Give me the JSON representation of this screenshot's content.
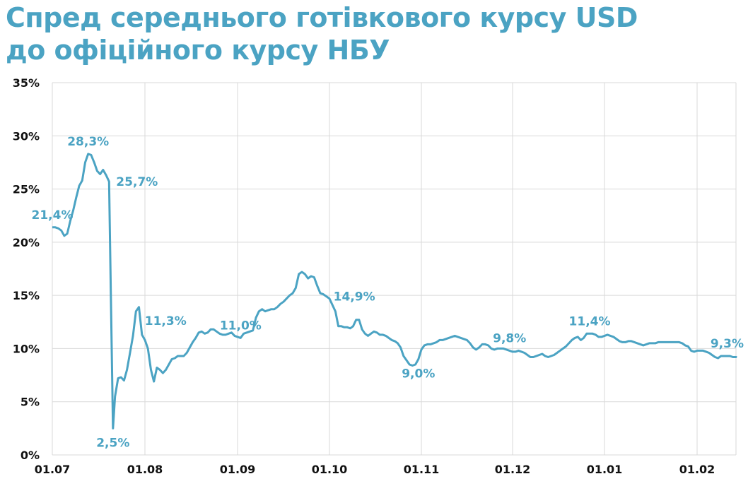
{
  "title": {
    "line1": "Спред середнього готівкового курсу USD",
    "line2": "до офіційного курсу НБУ"
  },
  "colors": {
    "accent": "#4ba3c3",
    "grid": "#d9d9d9",
    "axis_text": "#111111"
  },
  "chart_data": {
    "type": "line",
    "x_ticks": [
      "01.07",
      "01.08",
      "01.09",
      "01.10",
      "01.11",
      "01.12",
      "01.01",
      "01.02"
    ],
    "y_ticks": [
      "0%",
      "5%",
      "10%",
      "15%",
      "20%",
      "25%",
      "30%",
      "35%"
    ],
    "ylim": [
      0,
      35
    ],
    "xlim_days": [
      0,
      237
    ],
    "grid": "vertical and horizontal",
    "series": [
      {
        "points": [
          [
            0,
            21.4
          ],
          [
            1,
            21.4
          ],
          [
            2,
            21.3
          ],
          [
            3,
            21.1
          ],
          [
            4,
            20.6
          ],
          [
            5,
            20.8
          ],
          [
            6,
            22.0
          ],
          [
            7,
            23.0
          ],
          [
            8,
            24.2
          ],
          [
            9,
            25.3
          ],
          [
            10,
            25.8
          ],
          [
            11,
            27.5
          ],
          [
            12,
            28.3
          ],
          [
            13,
            28.2
          ],
          [
            14,
            27.5
          ],
          [
            15,
            26.7
          ],
          [
            16,
            26.4
          ],
          [
            17,
            26.8
          ],
          [
            18,
            26.3
          ],
          [
            19,
            25.7
          ],
          [
            19.6,
            15.0
          ],
          [
            20.3,
            2.5
          ],
          [
            21,
            5.5
          ],
          [
            22,
            7.2
          ],
          [
            23,
            7.3
          ],
          [
            24,
            7.0
          ],
          [
            25,
            8.0
          ],
          [
            26,
            9.6
          ],
          [
            27,
            11.2
          ],
          [
            28,
            13.5
          ],
          [
            29,
            13.9
          ],
          [
            30,
            11.3
          ],
          [
            31,
            10.8
          ],
          [
            32,
            10.0
          ],
          [
            33,
            8.0
          ],
          [
            34,
            6.9
          ],
          [
            35,
            8.2
          ],
          [
            36,
            8.0
          ],
          [
            37,
            7.7
          ],
          [
            38,
            8.0
          ],
          [
            39,
            8.5
          ],
          [
            40,
            9.0
          ],
          [
            41,
            9.1
          ],
          [
            42,
            9.3
          ],
          [
            43,
            9.3
          ],
          [
            44,
            9.3
          ],
          [
            45,
            9.6
          ],
          [
            46,
            10.1
          ],
          [
            47,
            10.6
          ],
          [
            48,
            11.0
          ],
          [
            49,
            11.5
          ],
          [
            50,
            11.6
          ],
          [
            51,
            11.4
          ],
          [
            52,
            11.5
          ],
          [
            53,
            11.8
          ],
          [
            54,
            11.8
          ],
          [
            55,
            11.6
          ],
          [
            56,
            11.4
          ],
          [
            57,
            11.3
          ],
          [
            58,
            11.3
          ],
          [
            59,
            11.4
          ],
          [
            60,
            11.5
          ],
          [
            61,
            11.2
          ],
          [
            62,
            11.1
          ],
          [
            63,
            11.0
          ],
          [
            64,
            11.4
          ],
          [
            65,
            11.5
          ],
          [
            66,
            11.6
          ],
          [
            67,
            11.7
          ],
          [
            68,
            12.9
          ],
          [
            69,
            13.5
          ],
          [
            70,
            13.7
          ],
          [
            71,
            13.5
          ],
          [
            72,
            13.6
          ],
          [
            73,
            13.7
          ],
          [
            74,
            13.7
          ],
          [
            75,
            13.9
          ],
          [
            76,
            14.2
          ],
          [
            77,
            14.4
          ],
          [
            78,
            14.7
          ],
          [
            79,
            15.0
          ],
          [
            80,
            15.2
          ],
          [
            81,
            15.7
          ],
          [
            82,
            17.0
          ],
          [
            83,
            17.2
          ],
          [
            84,
            17.0
          ],
          [
            85,
            16.6
          ],
          [
            86,
            16.8
          ],
          [
            87,
            16.7
          ],
          [
            88,
            15.9
          ],
          [
            89,
            15.2
          ],
          [
            90,
            15.1
          ],
          [
            91,
            14.9
          ],
          [
            92,
            14.7
          ],
          [
            93,
            14.1
          ],
          [
            94,
            13.5
          ],
          [
            95,
            12.1
          ],
          [
            96,
            12.1
          ],
          [
            97,
            12.0
          ],
          [
            98,
            12.0
          ],
          [
            99,
            11.9
          ],
          [
            100,
            12.1
          ],
          [
            101,
            12.7
          ],
          [
            102,
            12.7
          ],
          [
            103,
            11.8
          ],
          [
            104,
            11.4
          ],
          [
            105,
            11.2
          ],
          [
            106,
            11.4
          ],
          [
            107,
            11.6
          ],
          [
            108,
            11.5
          ],
          [
            109,
            11.3
          ],
          [
            110,
            11.3
          ],
          [
            111,
            11.2
          ],
          [
            112,
            11.0
          ],
          [
            113,
            10.8
          ],
          [
            114,
            10.7
          ],
          [
            115,
            10.5
          ],
          [
            116,
            10.1
          ],
          [
            117,
            9.3
          ],
          [
            118,
            8.9
          ],
          [
            119,
            8.5
          ],
          [
            120,
            8.4
          ],
          [
            121,
            8.5
          ],
          [
            122,
            9.0
          ],
          [
            123,
            9.9
          ],
          [
            124,
            10.3
          ],
          [
            125,
            10.4
          ],
          [
            126,
            10.4
          ],
          [
            127,
            10.5
          ],
          [
            128,
            10.6
          ],
          [
            129,
            10.8
          ],
          [
            130,
            10.8
          ],
          [
            131,
            10.9
          ],
          [
            132,
            11.0
          ],
          [
            133,
            11.1
          ],
          [
            134,
            11.2
          ],
          [
            135,
            11.1
          ],
          [
            136,
            11.0
          ],
          [
            137,
            10.9
          ],
          [
            138,
            10.8
          ],
          [
            139,
            10.5
          ],
          [
            140,
            10.1
          ],
          [
            141,
            9.9
          ],
          [
            142,
            10.1
          ],
          [
            143,
            10.4
          ],
          [
            144,
            10.4
          ],
          [
            145,
            10.3
          ],
          [
            146,
            10.0
          ],
          [
            147,
            9.9
          ],
          [
            148,
            10.0
          ],
          [
            149,
            10.0
          ],
          [
            150,
            10.0
          ],
          [
            151,
            9.9
          ],
          [
            152,
            9.8
          ],
          [
            153,
            9.7
          ],
          [
            154,
            9.7
          ],
          [
            155,
            9.8
          ],
          [
            156,
            9.7
          ],
          [
            157,
            9.6
          ],
          [
            158,
            9.4
          ],
          [
            159,
            9.2
          ],
          [
            160,
            9.2
          ],
          [
            161,
            9.3
          ],
          [
            162,
            9.4
          ],
          [
            163,
            9.5
          ],
          [
            164,
            9.3
          ],
          [
            165,
            9.2
          ],
          [
            166,
            9.3
          ],
          [
            167,
            9.4
          ],
          [
            168,
            9.6
          ],
          [
            169,
            9.8
          ],
          [
            170,
            10.0
          ],
          [
            171,
            10.2
          ],
          [
            172,
            10.5
          ],
          [
            173,
            10.8
          ],
          [
            174,
            11.0
          ],
          [
            175,
            11.1
          ],
          [
            176,
            10.8
          ],
          [
            177,
            11.0
          ],
          [
            178,
            11.4
          ],
          [
            179,
            11.4
          ],
          [
            180,
            11.4
          ],
          [
            181,
            11.3
          ],
          [
            182,
            11.1
          ],
          [
            183,
            11.1
          ],
          [
            184,
            11.2
          ],
          [
            185,
            11.3
          ],
          [
            186,
            11.2
          ],
          [
            187,
            11.1
          ],
          [
            188,
            10.9
          ],
          [
            189,
            10.7
          ],
          [
            190,
            10.6
          ],
          [
            191,
            10.6
          ],
          [
            192,
            10.7
          ],
          [
            193,
            10.7
          ],
          [
            194,
            10.6
          ],
          [
            195,
            10.5
          ],
          [
            196,
            10.4
          ],
          [
            197,
            10.3
          ],
          [
            198,
            10.4
          ],
          [
            199,
            10.5
          ],
          [
            200,
            10.5
          ],
          [
            201,
            10.5
          ],
          [
            202,
            10.6
          ],
          [
            203,
            10.6
          ],
          [
            204,
            10.6
          ],
          [
            205,
            10.6
          ],
          [
            206,
            10.6
          ],
          [
            207,
            10.6
          ],
          [
            208,
            10.6
          ],
          [
            209,
            10.6
          ],
          [
            210,
            10.5
          ],
          [
            211,
            10.3
          ],
          [
            212,
            10.2
          ],
          [
            213,
            9.8
          ],
          [
            214,
            9.7
          ],
          [
            215,
            9.8
          ],
          [
            216,
            9.8
          ],
          [
            217,
            9.8
          ],
          [
            218,
            9.7
          ],
          [
            219,
            9.6
          ],
          [
            220,
            9.4
          ],
          [
            221,
            9.2
          ],
          [
            222,
            9.1
          ],
          [
            223,
            9.3
          ],
          [
            224,
            9.3
          ],
          [
            225,
            9.3
          ],
          [
            226,
            9.3
          ],
          [
            227,
            9.2
          ],
          [
            228,
            9.2
          ],
          [
            229,
            9.3
          ],
          [
            230,
            9.3
          ],
          [
            231,
            9.3
          ],
          [
            232,
            9.3
          ],
          [
            233,
            9.3
          ],
          [
            234,
            9.3
          ],
          [
            235,
            9.3
          ],
          [
            236,
            9.3
          ],
          [
            237,
            9.3
          ]
        ]
      }
    ],
    "annotations": [
      {
        "text": "21,4%",
        "x": 0,
        "y": 21.4,
        "pos": "above"
      },
      {
        "text": "28,3%",
        "x": 12,
        "y": 28.3,
        "pos": "above"
      },
      {
        "text": "25,7%",
        "x": 19,
        "y": 25.7,
        "pos": "right"
      },
      {
        "text": "2,5%",
        "x": 20.3,
        "y": 2.5,
        "pos": "below"
      },
      {
        "text": "11,3%",
        "x": 30,
        "y": 11.3,
        "pos": "above-right"
      },
      {
        "text": "11,0%",
        "x": 63,
        "y": 11.0,
        "pos": "above"
      },
      {
        "text": "14,9%",
        "x": 91,
        "y": 14.9,
        "pos": "right"
      },
      {
        "text": "9,0%",
        "x": 122,
        "y": 9.0,
        "pos": "below"
      },
      {
        "text": "9,8%",
        "x": 152,
        "y": 9.8,
        "pos": "above"
      },
      {
        "text": "11,4%",
        "x": 179,
        "y": 11.4,
        "pos": "above"
      },
      {
        "text": "9,3%",
        "x": 237,
        "y": 9.3,
        "pos": "above"
      }
    ]
  }
}
